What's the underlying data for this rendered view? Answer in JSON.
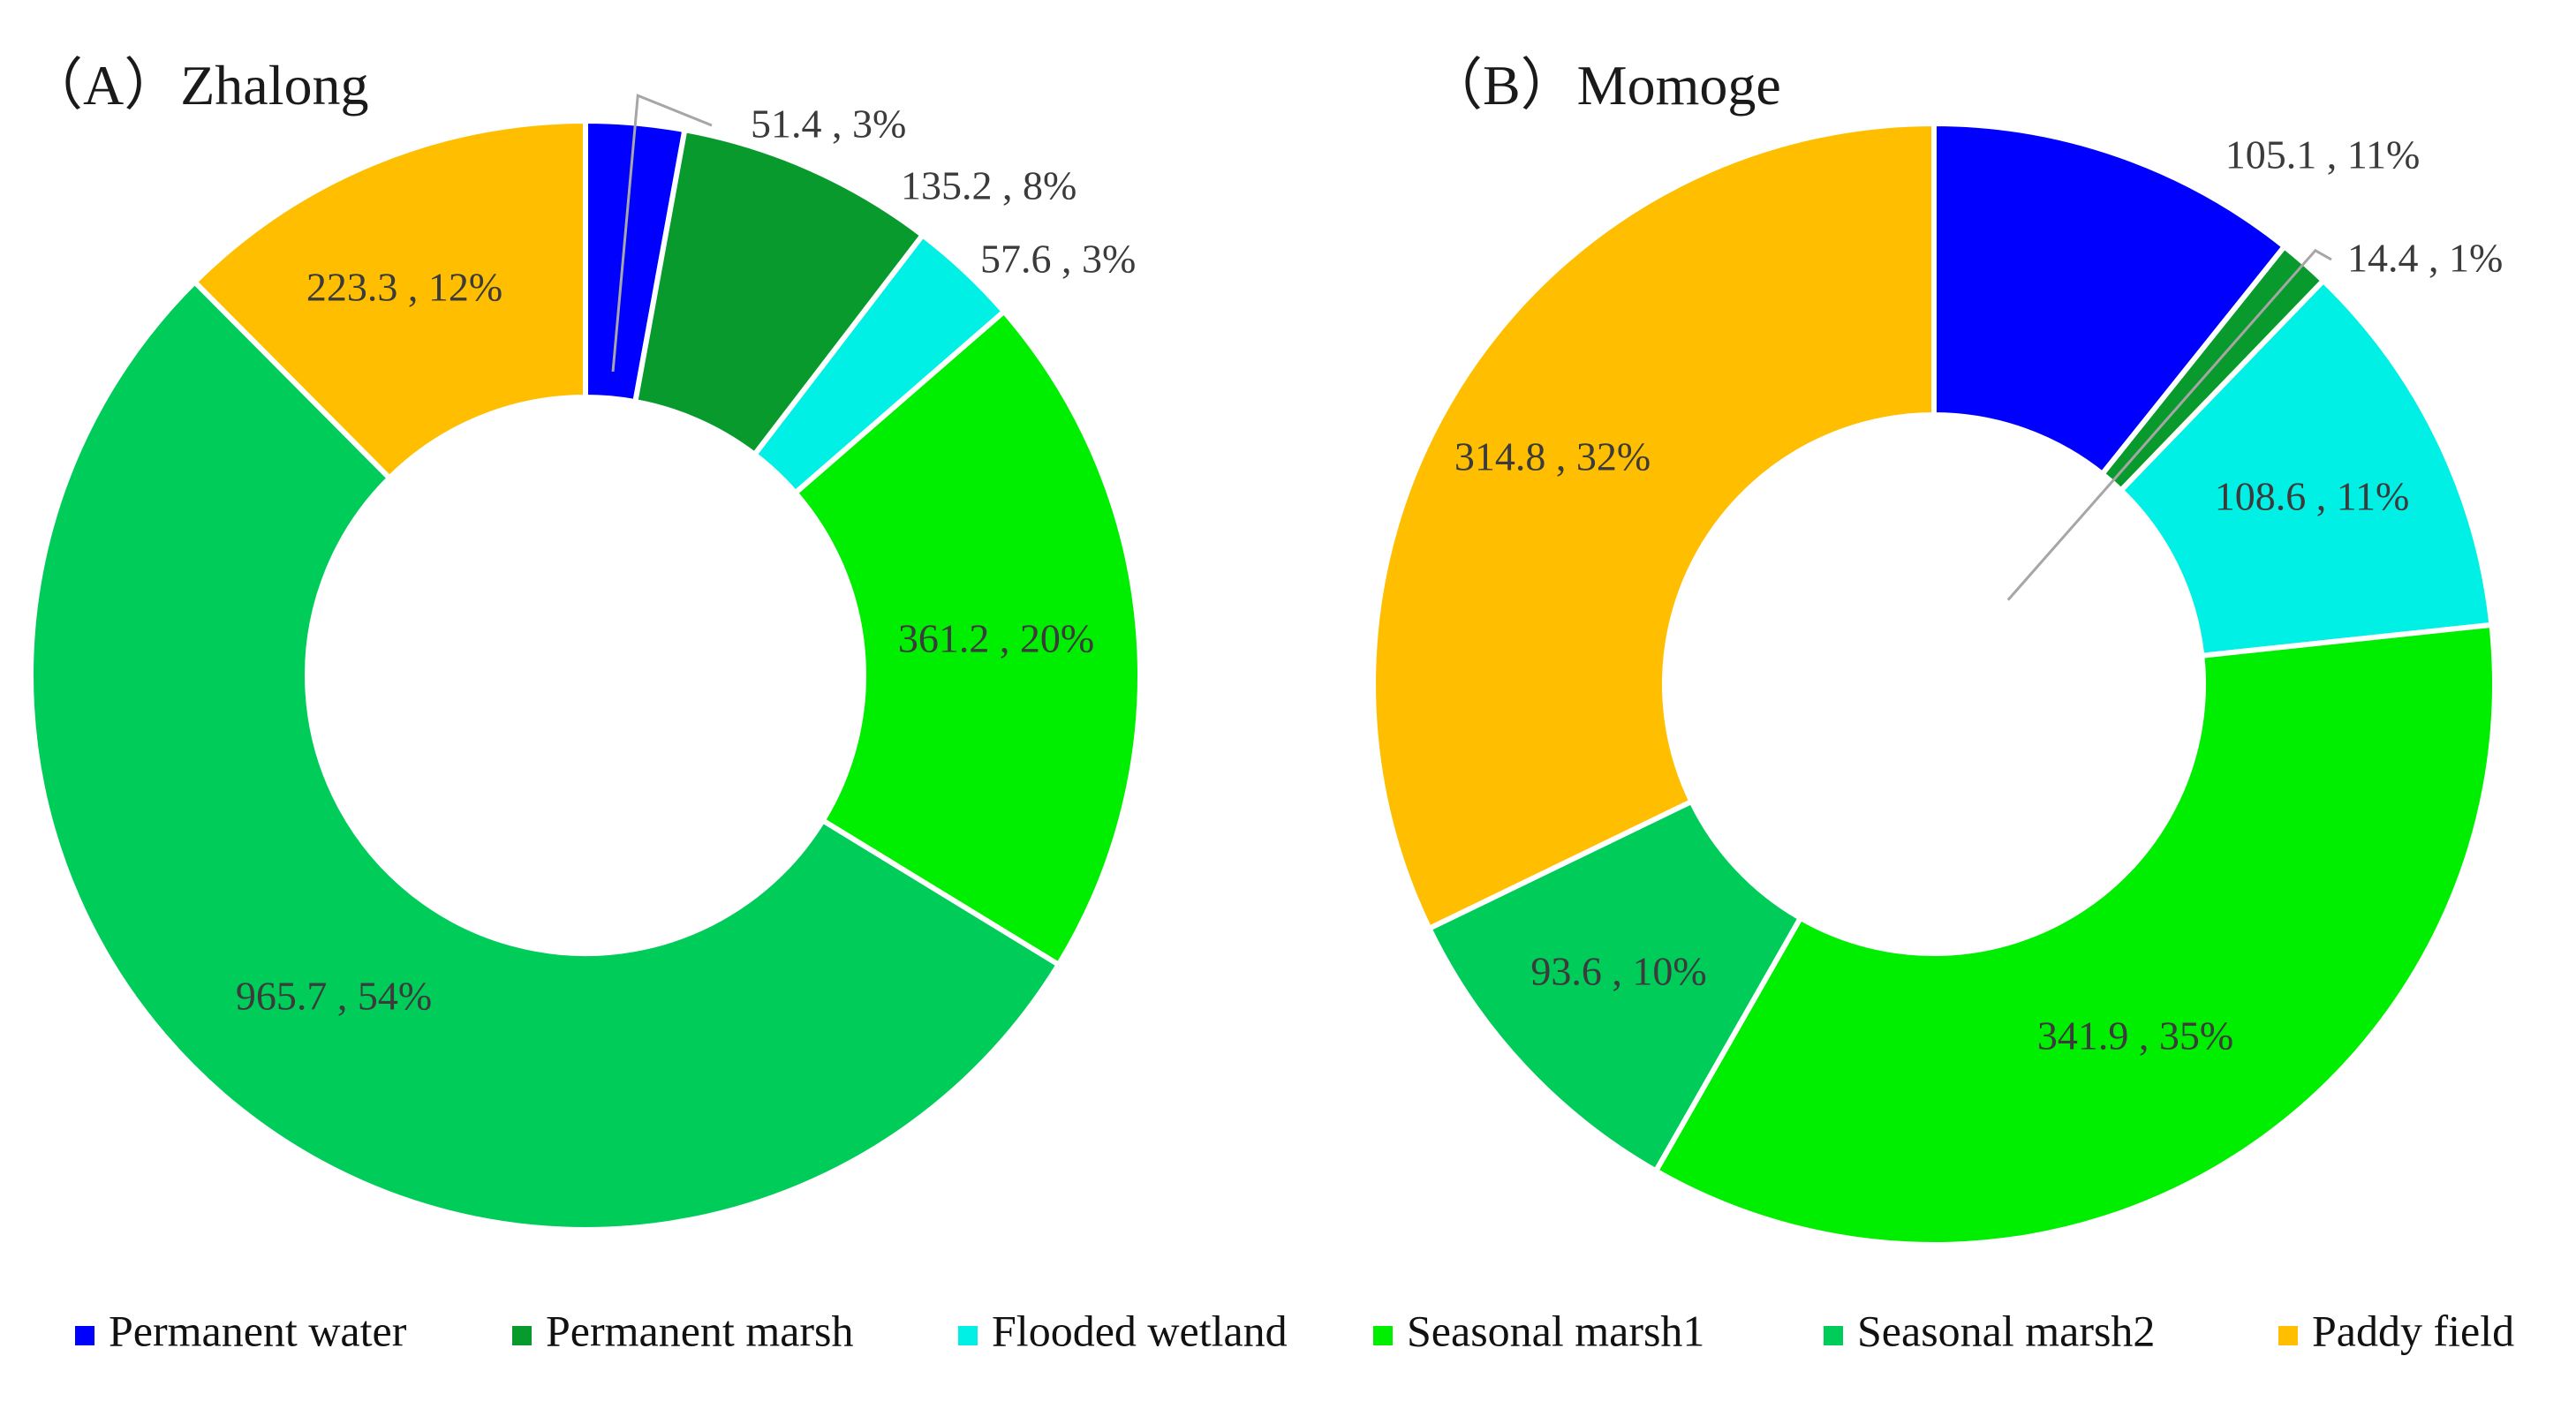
{
  "chart_data": {
    "type": "pie",
    "variant": "donut",
    "legend": {
      "position": "bottom",
      "entries": [
        {
          "name": "Permanent water",
          "color": "#0000FF"
        },
        {
          "name": "Permanent marsh",
          "color": "#089A2C"
        },
        {
          "name": "Flooded wetland",
          "color": "#00F0E6"
        },
        {
          "name": "Seasonal marsh1",
          "color": "#00EE00"
        },
        {
          "name": "Seasonal marsh2",
          "color": "#00CC5A"
        },
        {
          "name": "Paddy field",
          "color": "#FFBF00"
        }
      ]
    },
    "charts": [
      {
        "title": "（A）Zhalong",
        "slices": [
          {
            "category": "Permanent water",
            "value": 51.4,
            "percent": "3%",
            "label": "51.4 , 3%"
          },
          {
            "category": "Permanent marsh",
            "value": 135.2,
            "percent": "8%",
            "label": "135.2 , 8%"
          },
          {
            "category": "Flooded wetland",
            "value": 57.6,
            "percent": "3%",
            "label": "57.6 , 3%"
          },
          {
            "category": "Seasonal marsh1",
            "value": 361.2,
            "percent": "20%",
            "label": "361.2 , 20%"
          },
          {
            "category": "Seasonal marsh2",
            "value": 965.7,
            "percent": "54%",
            "label": "965.7 , 54%"
          },
          {
            "category": "Paddy field",
            "value": 223.3,
            "percent": "12%",
            "label": "223.3 , 12%"
          }
        ]
      },
      {
        "title": "（B）Momoge",
        "slices": [
          {
            "category": "Permanent water",
            "value": 105.1,
            "percent": "11%",
            "label": "105.1 , 11%"
          },
          {
            "category": "Permanent marsh",
            "value": 14.4,
            "percent": "1%",
            "label": "14.4 , 1%"
          },
          {
            "category": "Flooded wetland",
            "value": 108.6,
            "percent": "11%",
            "label": "108.6 , 11%"
          },
          {
            "category": "Seasonal marsh1",
            "value": 341.9,
            "percent": "35%",
            "label": "341.9 , 35%"
          },
          {
            "category": "Seasonal marsh2",
            "value": 93.6,
            "percent": "10%",
            "label": "93.6 , 10%"
          },
          {
            "category": "Paddy field",
            "value": 314.8,
            "percent": "32%",
            "label": "314.8 , 32%"
          }
        ]
      }
    ]
  }
}
